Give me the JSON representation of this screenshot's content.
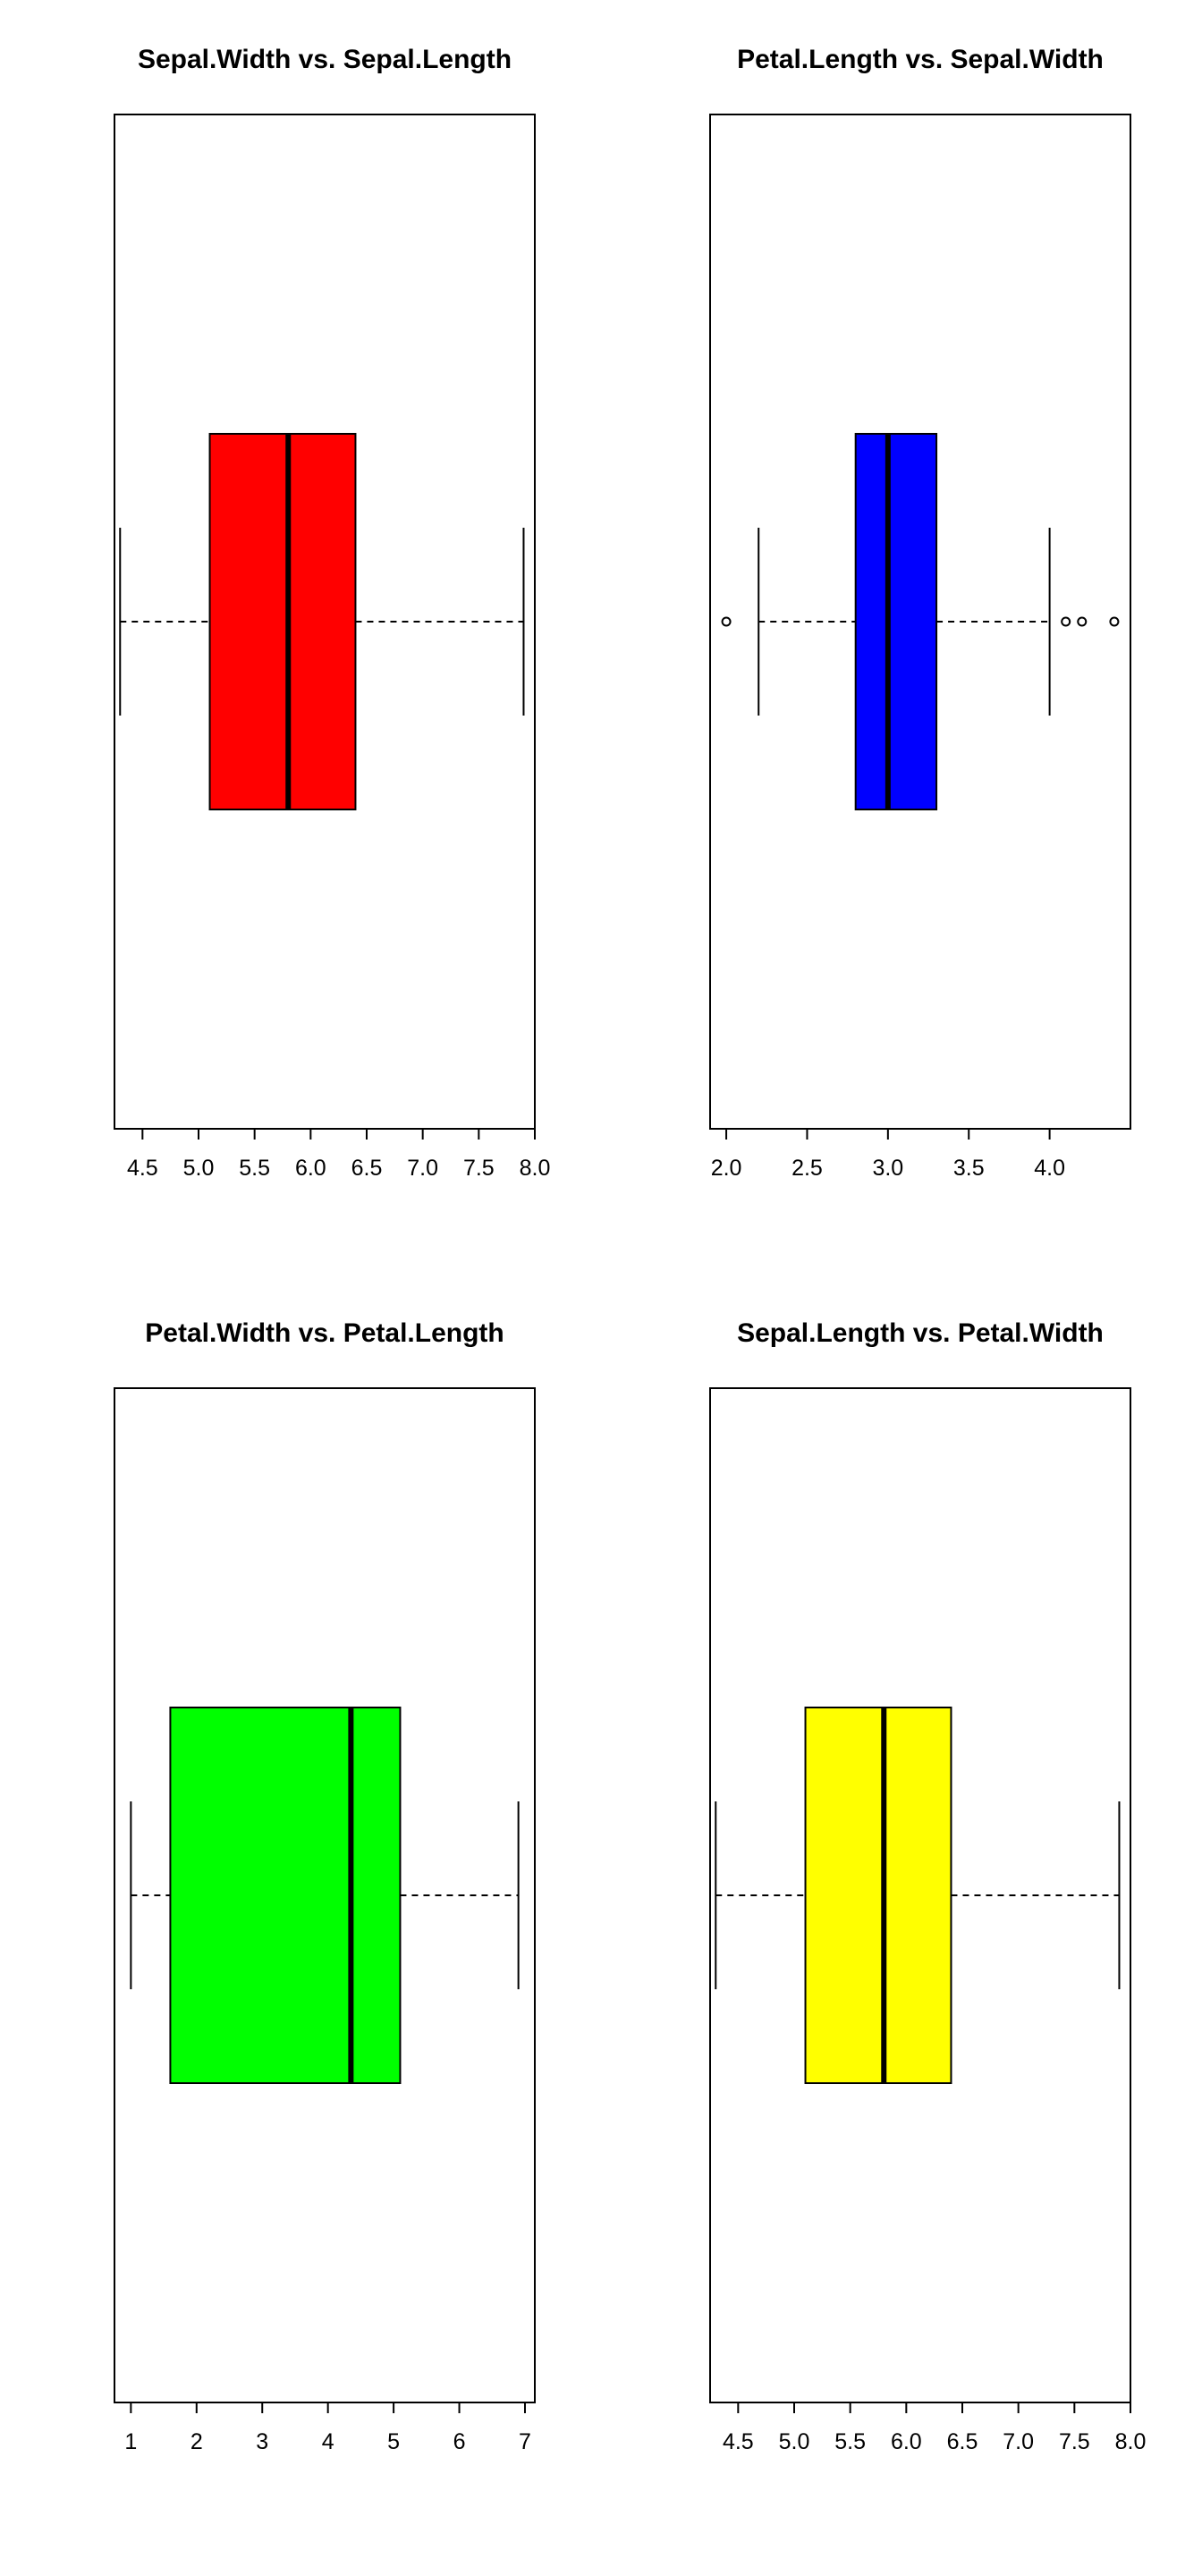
{
  "chart_data": [
    {
      "type": "boxplot",
      "orientation": "horizontal",
      "title": "Sepal.Width vs. Sepal.Length",
      "fill": "#ff0000",
      "xlim": [
        4.25,
        8.0
      ],
      "ticks": [
        4.5,
        5.0,
        5.5,
        6.0,
        6.5,
        7.0,
        7.5,
        8.0
      ],
      "tick_labels": [
        "4.5",
        "5.0",
        "5.5",
        "6.0",
        "6.5",
        "7.0",
        "7.5",
        "8.0"
      ],
      "min": 4.3,
      "q1": 5.1,
      "median": 5.8,
      "q3": 6.4,
      "max": 7.9,
      "outliers": []
    },
    {
      "type": "boxplot",
      "orientation": "horizontal",
      "title": "Petal.Length vs. Sepal.Width",
      "fill": "#0000ff",
      "xlim": [
        1.9,
        4.5
      ],
      "ticks": [
        2.0,
        2.5,
        3.0,
        3.5,
        4.0
      ],
      "tick_labels": [
        "2.0",
        "2.5",
        "3.0",
        "3.5",
        "4.0"
      ],
      "min": 2.2,
      "q1": 2.8,
      "median": 3.0,
      "q3": 3.3,
      "max": 4.0,
      "outliers": [
        2.0,
        4.1,
        4.2,
        4.4
      ]
    },
    {
      "type": "boxplot",
      "orientation": "horizontal",
      "title": "Petal.Width vs. Petal.Length",
      "fill": "#00ff00",
      "xlim": [
        0.75,
        7.15
      ],
      "ticks": [
        1,
        2,
        3,
        4,
        5,
        6,
        7
      ],
      "tick_labels": [
        "1",
        "2",
        "3",
        "4",
        "5",
        "6",
        "7"
      ],
      "min": 1.0,
      "q1": 1.6,
      "median": 4.35,
      "q3": 5.1,
      "max": 6.9,
      "outliers": []
    },
    {
      "type": "boxplot",
      "orientation": "horizontal",
      "title": "Sepal.Length vs. Petal.Width",
      "fill": "#ffff00",
      "xlim": [
        4.25,
        8.0
      ],
      "ticks": [
        4.5,
        5.0,
        5.5,
        6.0,
        6.5,
        7.0,
        7.5,
        8.0
      ],
      "tick_labels": [
        "4.5",
        "5.0",
        "5.5",
        "6.0",
        "6.5",
        "7.0",
        "7.5",
        "8.0"
      ],
      "min": 4.3,
      "q1": 5.1,
      "median": 5.8,
      "q3": 6.4,
      "max": 7.9,
      "outliers": []
    }
  ]
}
